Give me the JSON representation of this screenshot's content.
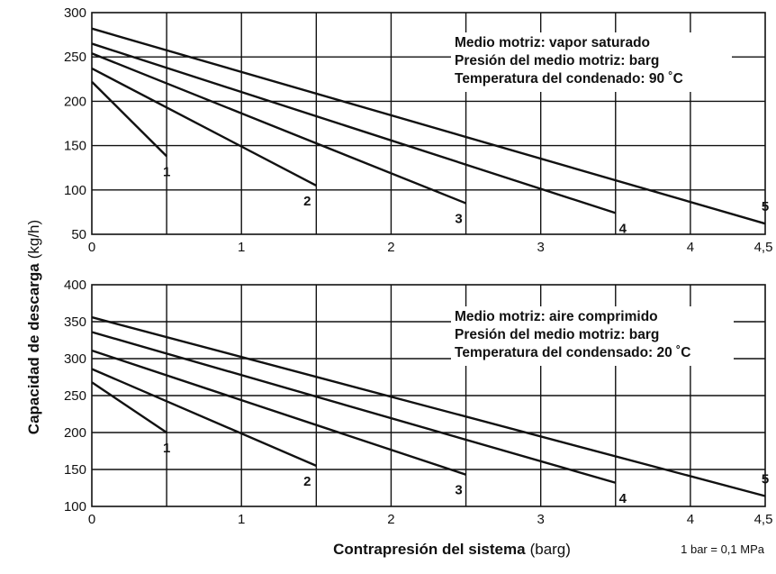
{
  "chart_data": [
    {
      "type": "line",
      "xlim": [
        0,
        4.5
      ],
      "ylim": [
        50,
        300
      ],
      "xticks": [
        "0",
        "1",
        "2",
        "3",
        "4",
        "4,5"
      ],
      "xtick_values": [
        0,
        1,
        2,
        3,
        4,
        4.5
      ],
      "yticks": [
        "50",
        "100",
        "150",
        "200",
        "250",
        "300"
      ],
      "ytick_values": [
        50,
        100,
        150,
        200,
        250,
        300
      ],
      "grid": true,
      "annotations": [
        "Medio motriz: vapor saturado",
        "Presión del medio motriz: barg",
        "Temperatura del condenado: 90 ˚C"
      ],
      "series": [
        {
          "label": "1",
          "points": [
            [
              0,
              222
            ],
            [
              0.5,
              138
            ]
          ]
        },
        {
          "label": "2",
          "points": [
            [
              0,
              237
            ],
            [
              1.5,
              105
            ]
          ]
        },
        {
          "label": "3",
          "points": [
            [
              0,
              254
            ],
            [
              2.5,
              85
            ]
          ]
        },
        {
          "label": "4",
          "points": [
            [
              0,
              265
            ],
            [
              3.5,
              74
            ]
          ]
        },
        {
          "label": "5",
          "points": [
            [
              0,
              282
            ],
            [
              4.5,
              62
            ]
          ]
        }
      ]
    },
    {
      "type": "line",
      "xlim": [
        0,
        4.5
      ],
      "ylim": [
        100,
        400
      ],
      "xticks": [
        "0",
        "1",
        "2",
        "3",
        "4",
        "4,5"
      ],
      "xtick_values": [
        0,
        1,
        2,
        3,
        4,
        4.5
      ],
      "yticks": [
        "100",
        "150",
        "200",
        "250",
        "300",
        "350",
        "400"
      ],
      "ytick_values": [
        100,
        150,
        200,
        250,
        300,
        350,
        400
      ],
      "grid": true,
      "annotations": [
        "Medio motriz: aire comprimido",
        "Presión del medio motriz: barg",
        "Temperatura del condensado: 20 ˚C"
      ],
      "series": [
        {
          "label": "1",
          "points": [
            [
              0,
              268
            ],
            [
              0.5,
              200
            ]
          ]
        },
        {
          "label": "2",
          "points": [
            [
              0,
              286
            ],
            [
              1.5,
              155
            ]
          ]
        },
        {
          "label": "3",
          "points": [
            [
              0,
              311
            ],
            [
              2.5,
              143
            ]
          ]
        },
        {
          "label": "4",
          "points": [
            [
              0,
              336
            ],
            [
              3.5,
              132
            ]
          ]
        },
        {
          "label": "5",
          "points": [
            [
              0,
              356
            ],
            [
              4.5,
              114
            ]
          ]
        }
      ]
    }
  ],
  "axes": {
    "ylabel_bold": "Capacidad de descarga",
    "ylabel_unit": "(kg/h)",
    "xlabel_bold": "Contrapresión del sistema",
    "xlabel_unit": "(barg)"
  },
  "footnote": "1 bar = 0,1 MPa"
}
